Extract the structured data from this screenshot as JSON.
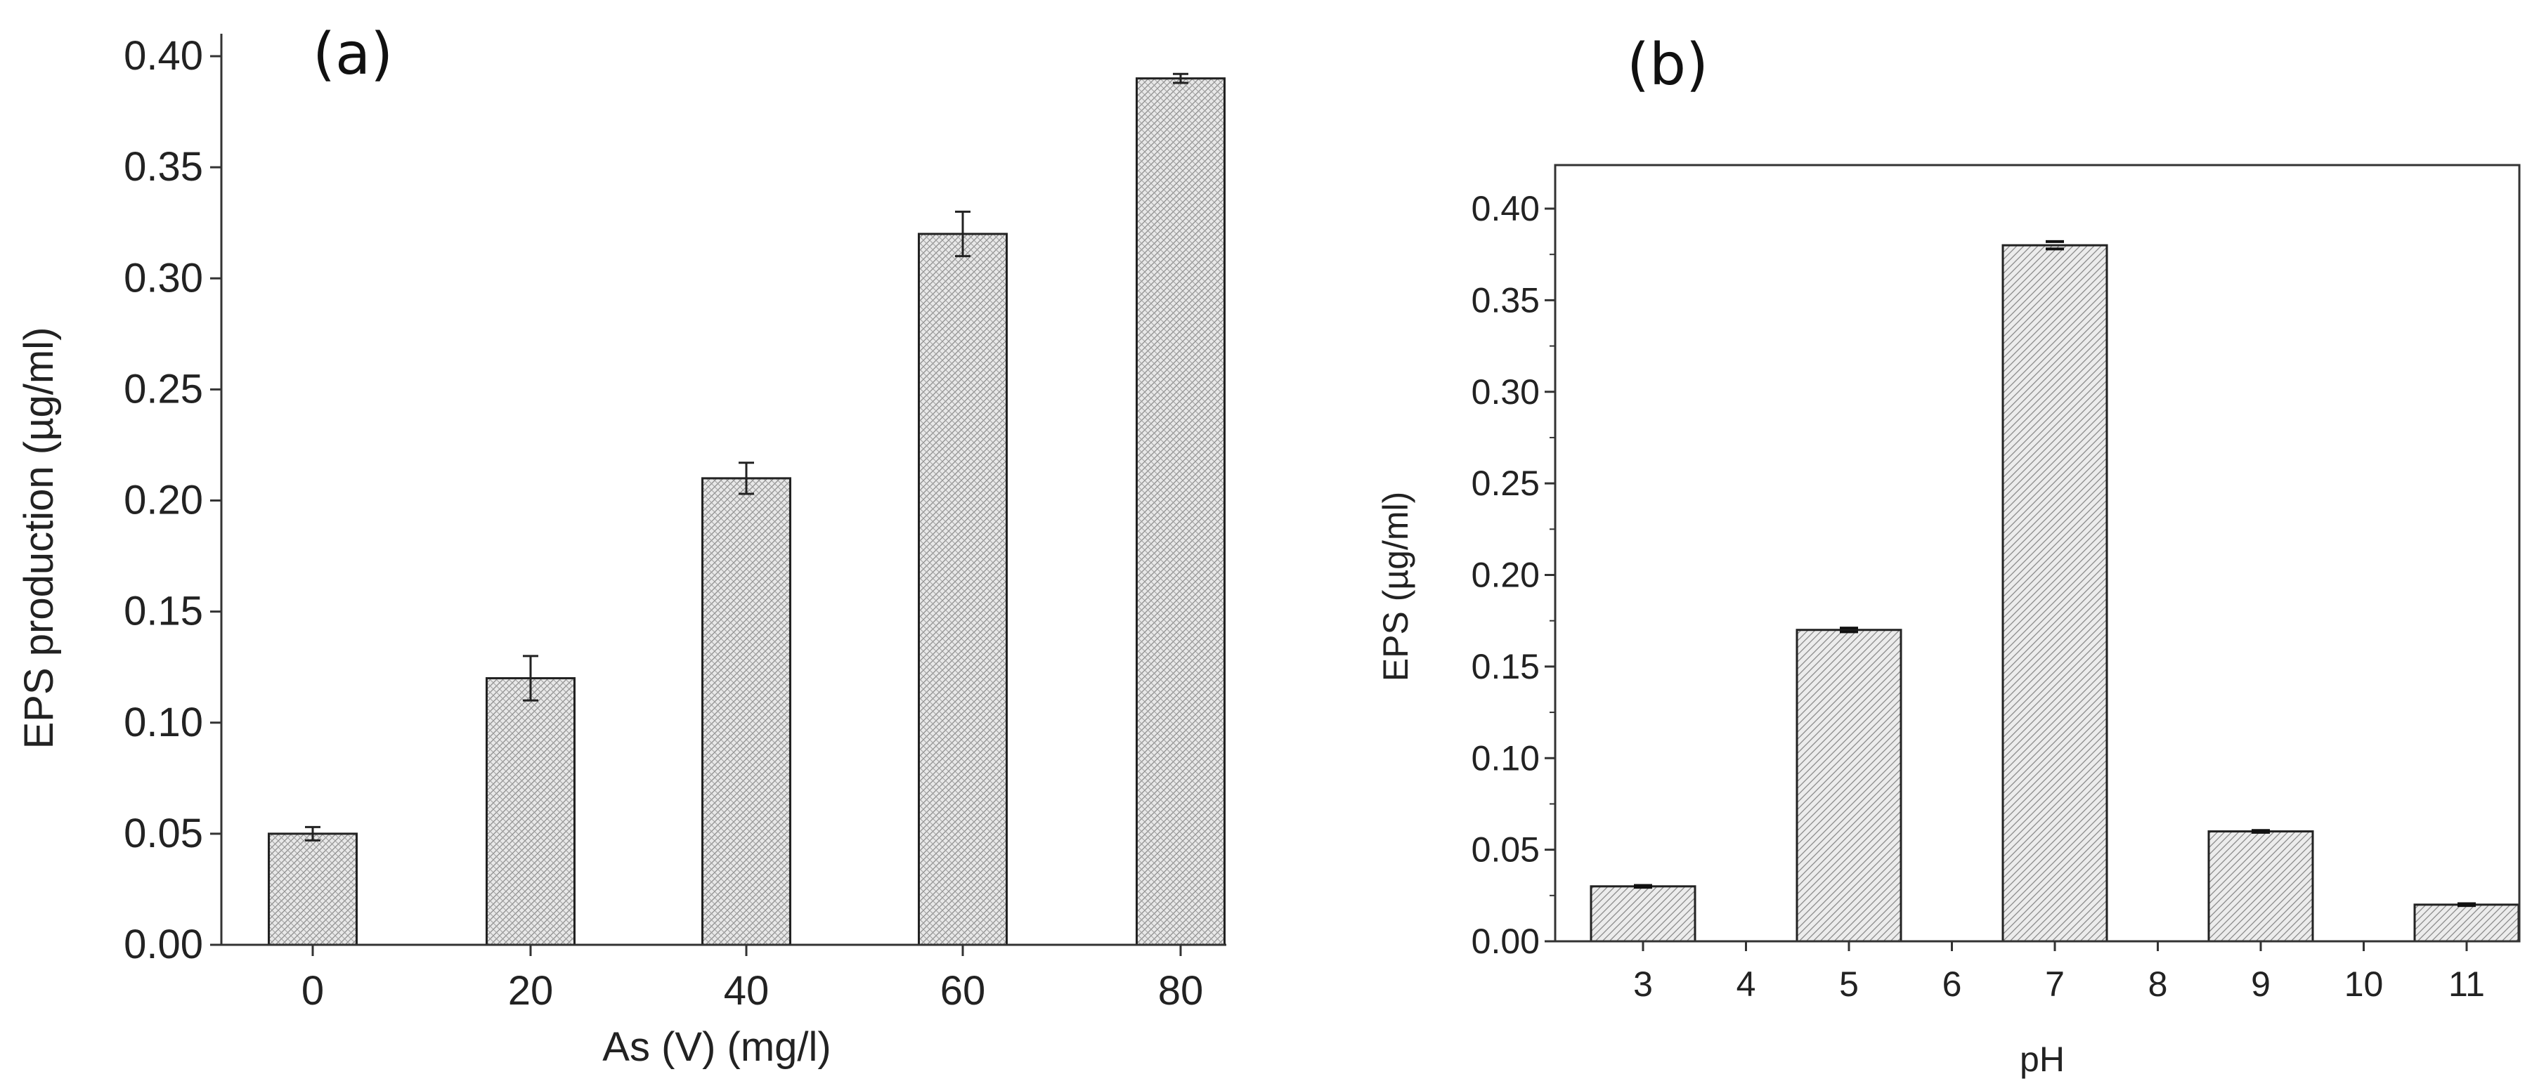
{
  "chart_data": [
    {
      "type": "bar",
      "panel_label": "(a)",
      "title": "",
      "xlabel": "As (V) (mg/l)",
      "ylabel": "EPS production (µg/ml)",
      "categories": [
        "0",
        "20",
        "40",
        "60",
        "80"
      ],
      "x": [
        0,
        20,
        40,
        60,
        80
      ],
      "values": [
        0.05,
        0.12,
        0.21,
        0.32,
        0.39
      ],
      "errors": [
        0.003,
        0.01,
        0.007,
        0.01,
        0.002
      ],
      "ylim": [
        0,
        0.4
      ],
      "yticks": [
        "0.00",
        "0.05",
        "0.10",
        "0.15",
        "0.20",
        "0.25",
        "0.30",
        "0.35",
        "0.40"
      ],
      "pattern": "crosshatch",
      "grid": false,
      "colors": {
        "bar_fill": "#e8e8e8",
        "bar_stroke": "#222222",
        "hatch": "#8a8a8a"
      }
    },
    {
      "type": "bar",
      "panel_label": "(b)",
      "title": "",
      "xlabel": "pH",
      "ylabel": "EPS (µg/ml)",
      "categories": [
        "3",
        "4",
        "5",
        "6",
        "7",
        "8",
        "9",
        "10",
        "11"
      ],
      "x": [
        3,
        4,
        5,
        6,
        7,
        8,
        9,
        10,
        11
      ],
      "bars": [
        {
          "x": 3,
          "value": 0.03,
          "error": 0.0005
        },
        {
          "x": 5,
          "value": 0.17,
          "error": 0.001
        },
        {
          "x": 7,
          "value": 0.38,
          "error": 0.002
        },
        {
          "x": 9,
          "value": 0.06,
          "error": 0.0005
        },
        {
          "x": 11,
          "value": 0.02,
          "error": 0.0005
        }
      ],
      "ylim": [
        0,
        0.42
      ],
      "yticks": [
        "0.00",
        "0.05",
        "0.10",
        "0.15",
        "0.20",
        "0.25",
        "0.30",
        "0.35",
        "0.40"
      ],
      "pattern": "diagonal",
      "grid": false,
      "colors": {
        "bar_fill": "#ececec",
        "bar_stroke": "#222222",
        "hatch": "#8a8a8a"
      }
    }
  ]
}
